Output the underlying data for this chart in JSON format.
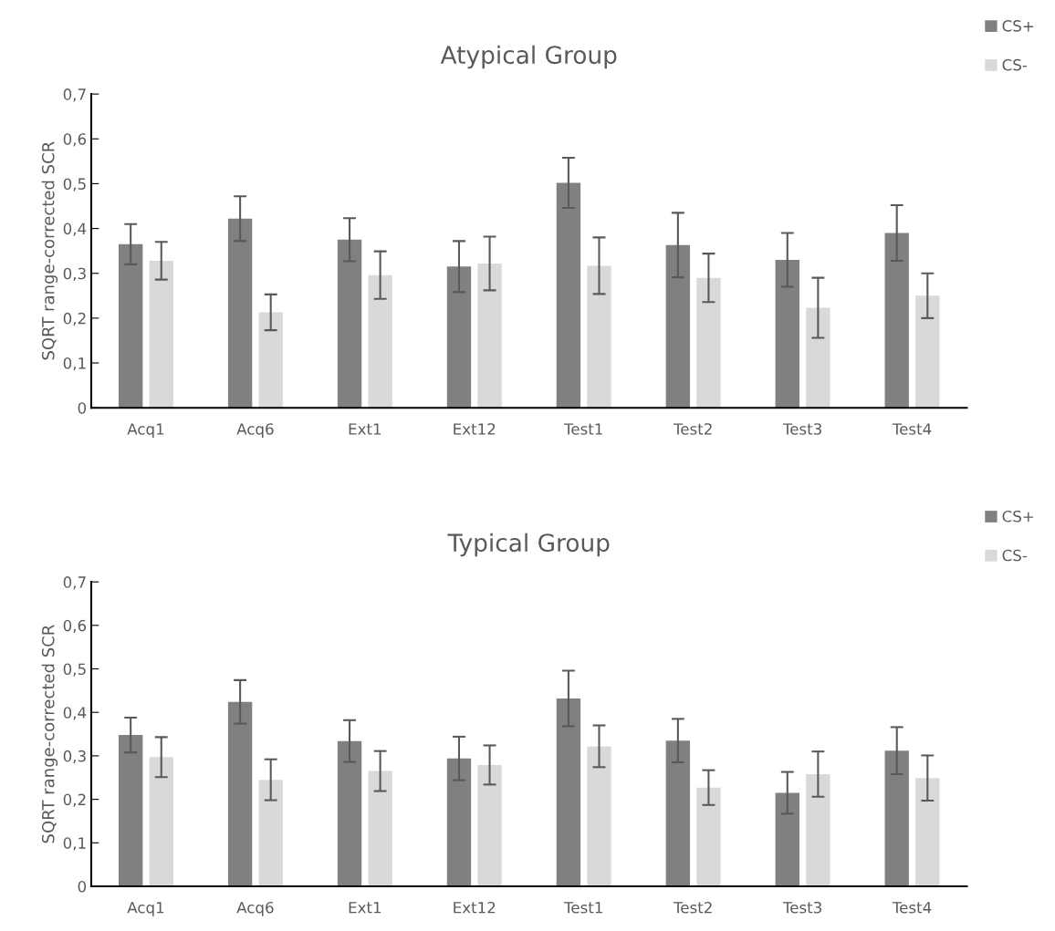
{
  "chart_data": [
    {
      "type": "bar",
      "title": "Atypical Group",
      "ylabel": "SQRT range-corrected SCR",
      "categories": [
        "Acq1",
        "Acq6",
        "Ext1",
        "Ext12",
        "Test1",
        "Test2",
        "Test3",
        "Test4"
      ],
      "series": [
        {
          "name": "CS+",
          "color": "#808080",
          "values": [
            0.365,
            0.422,
            0.375,
            0.315,
            0.502,
            0.363,
            0.33,
            0.39
          ],
          "errors": [
            0.045,
            0.05,
            0.048,
            0.057,
            0.056,
            0.072,
            0.06,
            0.062
          ]
        },
        {
          "name": "CS-",
          "color": "#d9d9d9",
          "values": [
            0.328,
            0.213,
            0.296,
            0.322,
            0.317,
            0.29,
            0.223,
            0.25
          ],
          "errors": [
            0.042,
            0.04,
            0.053,
            0.06,
            0.063,
            0.054,
            0.067,
            0.05
          ]
        }
      ],
      "ylim": [
        0,
        0.7
      ],
      "yticks": [
        {
          "value": 0,
          "label": "0"
        },
        {
          "value": 0.1,
          "label": "0,1"
        },
        {
          "value": 0.2,
          "label": "0,2"
        },
        {
          "value": 0.3,
          "label": "0,3"
        },
        {
          "value": 0.4,
          "label": "0,4"
        },
        {
          "value": 0.5,
          "label": "0,5"
        },
        {
          "value": 0.6,
          "label": "0,6"
        },
        {
          "value": 0.7,
          "label": "0,7"
        }
      ],
      "grid": false,
      "legend": "top right"
    },
    {
      "type": "bar",
      "title": "Typical Group",
      "ylabel": "SQRT range-corrected SCR",
      "categories": [
        "Acq1",
        "Acq6",
        "Ext1",
        "Ext12",
        "Test1",
        "Test2",
        "Test3",
        "Test4"
      ],
      "series": [
        {
          "name": "CS+",
          "color": "#808080",
          "values": [
            0.348,
            0.424,
            0.334,
            0.294,
            0.432,
            0.335,
            0.215,
            0.312
          ],
          "errors": [
            0.04,
            0.05,
            0.048,
            0.05,
            0.064,
            0.05,
            0.048,
            0.054
          ]
        },
        {
          "name": "CS-",
          "color": "#d9d9d9",
          "values": [
            0.297,
            0.245,
            0.265,
            0.279,
            0.322,
            0.227,
            0.258,
            0.249
          ],
          "errors": [
            0.046,
            0.047,
            0.046,
            0.045,
            0.048,
            0.04,
            0.052,
            0.052
          ]
        }
      ],
      "ylim": [
        0,
        0.7
      ],
      "yticks": [
        {
          "value": 0,
          "label": "0"
        },
        {
          "value": 0.1,
          "label": "0,1"
        },
        {
          "value": 0.2,
          "label": "0,2"
        },
        {
          "value": 0.3,
          "label": "0,3"
        },
        {
          "value": 0.4,
          "label": "0,4"
        },
        {
          "value": 0.5,
          "label": "0,5"
        },
        {
          "value": 0.6,
          "label": "0,6"
        },
        {
          "value": 0.7,
          "label": "0,7"
        }
      ],
      "grid": false,
      "legend": "top right"
    }
  ]
}
